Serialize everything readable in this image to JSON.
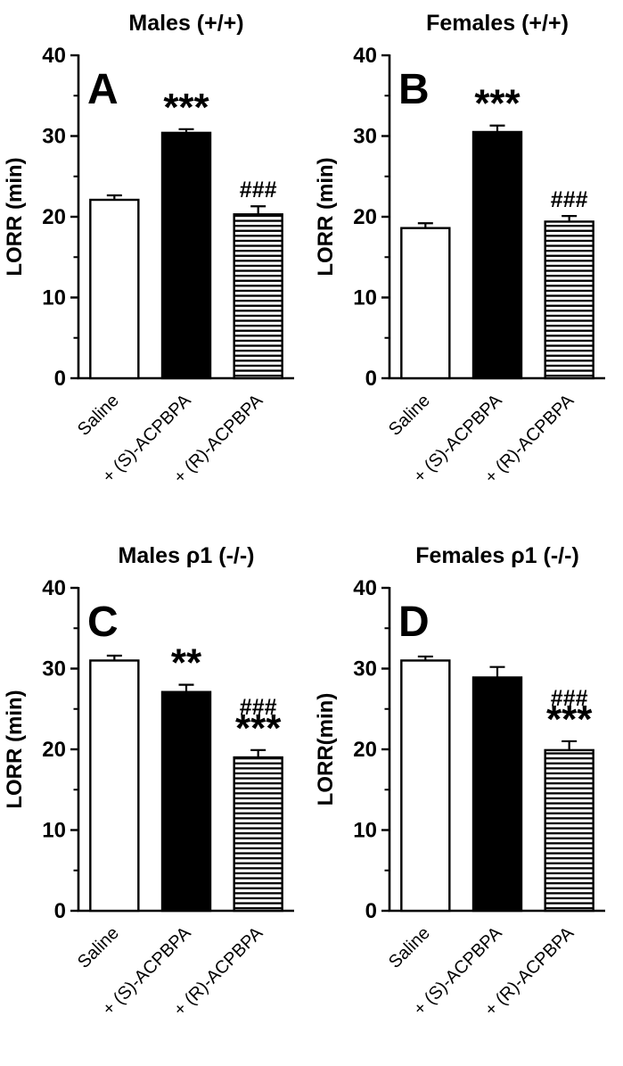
{
  "figure": {
    "background": "#ffffff",
    "ink_color": "#000000"
  },
  "chart_data": [
    {
      "type": "bar",
      "panel_letter": "A",
      "title": "Males (+/+)",
      "ylabel": "LORR (min)",
      "ylim": [
        0,
        40
      ],
      "yticks": [
        0,
        10,
        20,
        30,
        40
      ],
      "minor_ticks": [
        5,
        15,
        25,
        35
      ],
      "categories": [
        "Saline",
        "+ (S)-ACPBPA",
        "+ (R)-ACPBPA"
      ],
      "values": [
        22.1,
        30.4,
        20.3
      ],
      "errors": [
        0.55,
        0.45,
        1.0
      ],
      "bar_fills": [
        "white",
        "black",
        "stripes"
      ],
      "annotations": [
        [],
        [
          "***"
        ],
        [
          "###"
        ]
      ]
    },
    {
      "type": "bar",
      "panel_letter": "B",
      "title": "Females (+/+)",
      "ylabel": "LORR (min)",
      "ylim": [
        0,
        40
      ],
      "yticks": [
        0,
        10,
        20,
        30,
        40
      ],
      "minor_ticks": [
        5,
        15,
        25,
        35
      ],
      "categories": [
        "Saline",
        "+ (S)-ACPBPA",
        "+ (R)-ACPBPA"
      ],
      "values": [
        18.6,
        30.5,
        19.4
      ],
      "errors": [
        0.6,
        0.8,
        0.7
      ],
      "bar_fills": [
        "white",
        "black",
        "stripes"
      ],
      "annotations": [
        [],
        [
          "***"
        ],
        [
          "###"
        ]
      ]
    },
    {
      "type": "bar",
      "panel_letter": "C",
      "title": "Males ρ1 (-/-)",
      "ylabel": "LORR (min)",
      "ylim": [
        0,
        40
      ],
      "yticks": [
        0,
        10,
        20,
        30,
        40
      ],
      "minor_ticks": [
        5,
        15,
        25,
        35
      ],
      "categories": [
        "Saline",
        "+ (S)-ACPBPA",
        "+ (R)-ACPBPA"
      ],
      "values": [
        31.0,
        27.1,
        19.0
      ],
      "errors": [
        0.6,
        0.9,
        0.9
      ],
      "bar_fills": [
        "white",
        "black",
        "stripes"
      ],
      "annotations": [
        [],
        [
          "**"
        ],
        [
          "###",
          "***"
        ]
      ]
    },
    {
      "type": "bar",
      "panel_letter": "D",
      "title": "Females ρ1 (-/-)",
      "ylabel": "LORR(min)",
      "ylim": [
        0,
        40
      ],
      "yticks": [
        0,
        10,
        20,
        30,
        40
      ],
      "minor_ticks": [
        5,
        15,
        25,
        35
      ],
      "categories": [
        "Saline",
        "+ (S)-ACPBPA",
        "+ (R)-ACPBPA"
      ],
      "values": [
        31.0,
        28.9,
        19.9
      ],
      "errors": [
        0.5,
        1.3,
        1.1
      ],
      "bar_fills": [
        "white",
        "black",
        "stripes"
      ],
      "annotations": [
        [],
        [],
        [
          "###",
          "***"
        ]
      ]
    }
  ]
}
